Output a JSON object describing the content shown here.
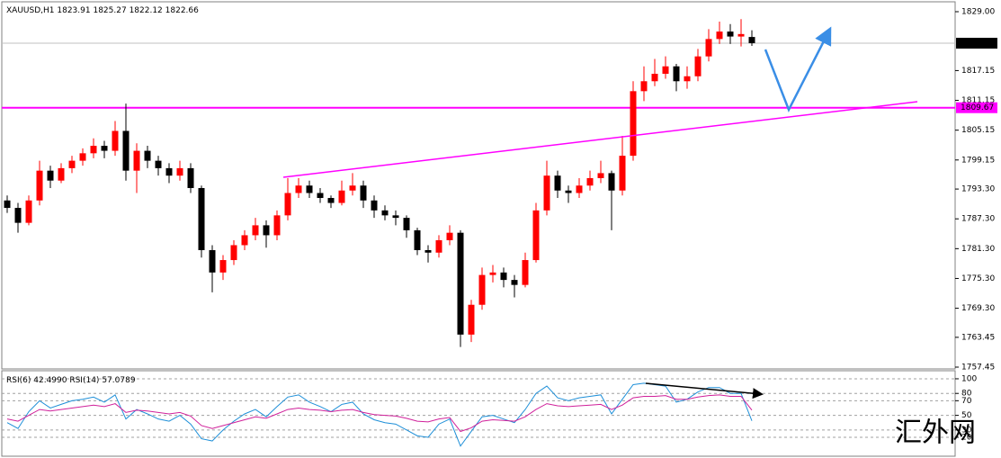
{
  "chart_data": [
    {
      "type": "candlestick",
      "title": "XAUUSD,H1",
      "ohlc_header": [
        1823.91,
        1825.27,
        1822.12,
        1822.66
      ],
      "up_color": "#ff0000",
      "down_color": "#000000",
      "open": [
        1791,
        1789.5,
        1786.5,
        1791,
        1797,
        1795,
        1797.5,
        1799,
        1800.5,
        1802,
        1801,
        1805,
        1797,
        1801,
        1799,
        1797.5,
        1796,
        1797.5,
        1793.5,
        1781,
        1776.5,
        1779,
        1782,
        1784,
        1786,
        1784,
        1788,
        1792.5,
        1794,
        1792.5,
        1791.5,
        1790.5,
        1793,
        1794,
        1791,
        1789,
        1788,
        1787.5,
        1785,
        1781,
        1780.5,
        1783,
        1784.5,
        1764,
        1770,
        1776,
        1776.5,
        1775,
        1774,
        1779,
        1789,
        1796,
        1793,
        1792.5,
        1794,
        1795.5,
        1796.5,
        1793,
        1800,
        1813,
        1815,
        1816.5,
        1818,
        1815,
        1816,
        1820,
        1823.5,
        1825,
        1824,
        1823.91
      ],
      "high": [
        1792,
        1790.5,
        1792,
        1799,
        1798,
        1798.5,
        1800,
        1801.5,
        1803.5,
        1803,
        1807,
        1810.5,
        1802.5,
        1802,
        1800,
        1798.5,
        1799,
        1798.5,
        1794,
        1782,
        1780,
        1783,
        1785,
        1787.5,
        1787,
        1789,
        1795.5,
        1795.5,
        1795,
        1793.5,
        1792,
        1795,
        1796.5,
        1795,
        1792,
        1790,
        1789,
        1788,
        1785.5,
        1782,
        1784,
        1786,
        1785,
        1771,
        1777.5,
        1778,
        1777.5,
        1776,
        1780.5,
        1790.5,
        1799,
        1797,
        1794,
        1795.5,
        1797,
        1799,
        1797,
        1804,
        1815,
        1818,
        1819.5,
        1820,
        1818.5,
        1818,
        1821.5,
        1825.5,
        1827,
        1826.5,
        1827.5,
        1825.27
      ],
      "low": [
        1788.5,
        1784.5,
        1786,
        1790,
        1793.5,
        1794.5,
        1796.5,
        1798,
        1799.5,
        1799.5,
        1800,
        1795,
        1792.5,
        1797.5,
        1796,
        1794.5,
        1795,
        1792.5,
        1779.5,
        1772.5,
        1775,
        1778,
        1781,
        1783,
        1781.5,
        1783,
        1787,
        1791.5,
        1791.5,
        1790.5,
        1789.5,
        1790,
        1792,
        1789.5,
        1787.5,
        1787,
        1786,
        1783.5,
        1780,
        1778.5,
        1779.5,
        1782,
        1761.5,
        1762.5,
        1769,
        1774.5,
        1773.5,
        1771.5,
        1773.5,
        1778.5,
        1788,
        1791.5,
        1790.5,
        1791.5,
        1793,
        1794.5,
        1785,
        1792,
        1799,
        1811,
        1814,
        1815.5,
        1813,
        1813.5,
        1815,
        1819,
        1822.5,
        1822.5,
        1822,
        1822.12
      ],
      "close": [
        1789.5,
        1786.5,
        1791,
        1797,
        1795,
        1797.5,
        1799,
        1800.5,
        1802,
        1801,
        1805,
        1797,
        1801,
        1799,
        1797.5,
        1796,
        1797.5,
        1793.5,
        1781,
        1776.5,
        1779,
        1782,
        1784,
        1786,
        1784,
        1788,
        1792.5,
        1794,
        1792.5,
        1791.5,
        1790.5,
        1793,
        1794,
        1791,
        1789,
        1788,
        1787.5,
        1785,
        1781,
        1780.5,
        1783,
        1784.5,
        1764,
        1770,
        1776,
        1776.5,
        1775,
        1774,
        1779,
        1789,
        1796,
        1793,
        1792.5,
        1794,
        1795.5,
        1796.5,
        1793,
        1800,
        1813,
        1815,
        1816.5,
        1818,
        1815,
        1816,
        1820,
        1823.5,
        1825,
        1824,
        1824.5,
        1822.66
      ],
      "ylim": [
        1757.09,
        1830.81
      ],
      "yticks": [
        {
          "value": 1829,
          "label": "1829.00"
        },
        1817.15,
        1811.15,
        1805.15,
        1799.15,
        {
          "value": 1793.3,
          "label": "1793.30"
        },
        {
          "value": 1787.3,
          "label": "1787.30"
        },
        {
          "value": 1781.3,
          "label": "1781.30"
        },
        {
          "value": 1775.3,
          "label": "1775.30"
        },
        {
          "value": 1769.3,
          "label": "1769.30"
        },
        1763.45,
        1757.45
      ],
      "levels": [
        {
          "value": 1809.67,
          "color": "#ff00ff"
        }
      ],
      "last_price": 1822.66,
      "last_price_line_color": "#c0c0c0"
    },
    {
      "type": "line",
      "ylim": [
        -3.4,
        109.8
      ],
      "yticks": [
        100,
        80,
        70,
        50,
        30,
        20
      ],
      "grid": true,
      "series": [
        {
          "name": "RSI(6)",
          "last_label": "42.4990",
          "color": "#1e8fd8",
          "values": [
            40,
            32,
            55,
            70,
            60,
            65,
            70,
            72,
            75,
            68,
            78,
            45,
            58,
            52,
            45,
            42,
            50,
            38,
            18,
            15,
            30,
            42,
            52,
            58,
            48,
            62,
            75,
            78,
            68,
            62,
            55,
            65,
            68,
            52,
            44,
            40,
            38,
            30,
            22,
            20,
            38,
            45,
            8,
            28,
            48,
            50,
            45,
            40,
            58,
            80,
            90,
            74,
            70,
            74,
            76,
            78,
            52,
            72,
            92,
            94,
            92,
            90,
            68,
            72,
            82,
            88,
            88,
            80,
            80,
            42.499
          ]
        },
        {
          "name": "RSI(14)",
          "last_label": "57.0789",
          "color": "#d0209a",
          "values": [
            45,
            42,
            50,
            58,
            56,
            58,
            60,
            62,
            64,
            62,
            66,
            54,
            57,
            56,
            54,
            52,
            54,
            49,
            36,
            32,
            36,
            40,
            44,
            48,
            46,
            52,
            58,
            60,
            58,
            57,
            55,
            57,
            58,
            54,
            51,
            50,
            49,
            46,
            42,
            41,
            45,
            47,
            28,
            33,
            42,
            44,
            43,
            42,
            48,
            58,
            66,
            63,
            62,
            63,
            64,
            65,
            58,
            64,
            74,
            76,
            76,
            77,
            72,
            72,
            75,
            77,
            78,
            76,
            76,
            57.0789
          ]
        }
      ]
    }
  ],
  "watermark": "汇外网"
}
